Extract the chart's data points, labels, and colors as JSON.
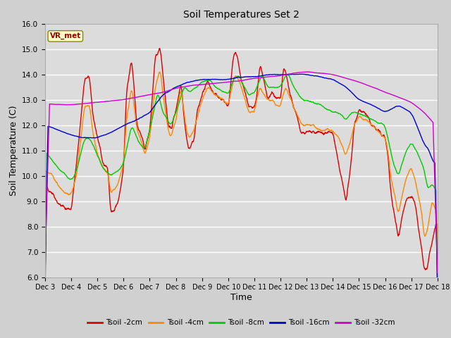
{
  "title": "Soil Temperatures Set 2",
  "xlabel": "Time",
  "ylabel": "Soil Temperature (C)",
  "ylim": [
    6.0,
    16.0
  ],
  "yticks": [
    6.0,
    7.0,
    8.0,
    9.0,
    10.0,
    11.0,
    12.0,
    13.0,
    14.0,
    15.0,
    16.0
  ],
  "colors": {
    "Tsoil -2cm": "#dd0000",
    "Tsoil -4cm": "#ff8800",
    "Tsoil -8cm": "#00cc00",
    "Tsoil -16cm": "#0000cc",
    "Tsoil -32cm": "#cc00cc"
  },
  "fig_bg_color": "#d0d0d0",
  "plot_bg_color": "#dcdcdc",
  "grid_color": "#ffffff",
  "vr_met_box_color": "#ffffcc",
  "vr_met_text_color": "#990000",
  "vr_met_edge_color": "#888800",
  "n_points": 1500,
  "x_start": 3.0,
  "x_end": 18.0,
  "xtick_days": [
    3,
    4,
    5,
    6,
    7,
    8,
    9,
    10,
    11,
    12,
    13,
    14,
    15,
    16,
    17,
    18
  ]
}
